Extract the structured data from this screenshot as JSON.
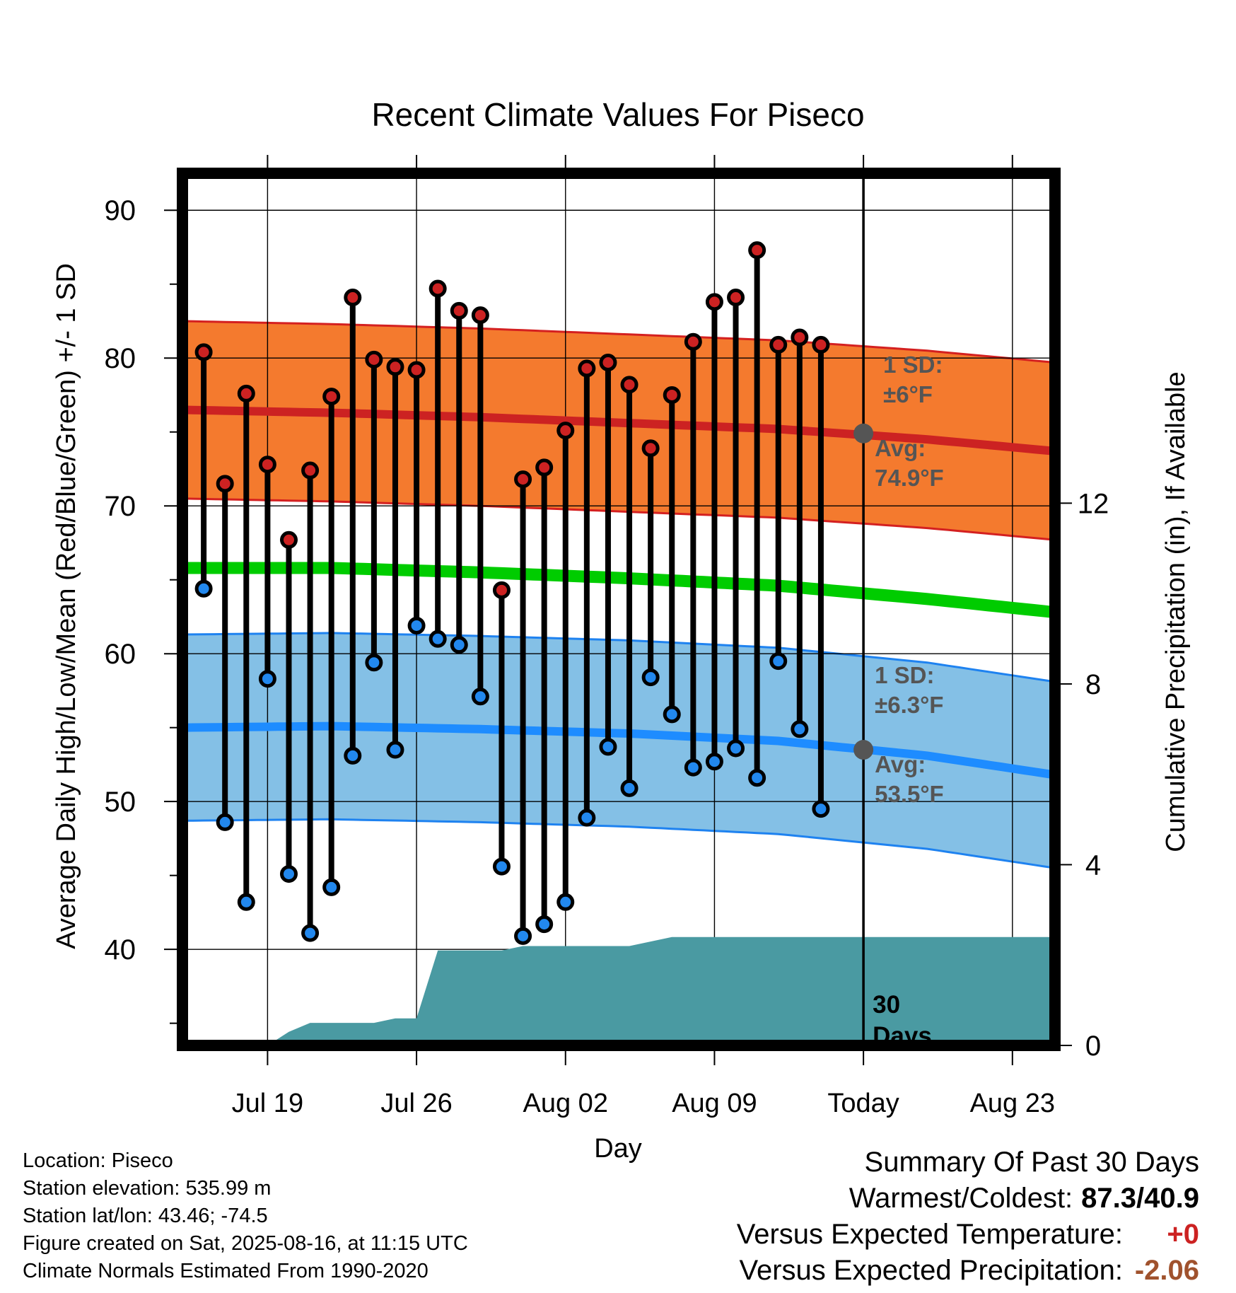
{
  "chart_data": {
    "type": "line",
    "title": "Recent Climate Values For Piseco",
    "xlabel": "Day",
    "ylabel": "Average Daily High/Low/Mean (Red/Blue/Green) +/- 1 SD",
    "y2label": "Cumulative Precipitation (in), If Available",
    "x_dates": [
      "2025-07-16",
      "2025-07-17",
      "2025-07-18",
      "2025-07-19",
      "2025-07-20",
      "2025-07-21",
      "2025-07-22",
      "2025-07-23",
      "2025-07-24",
      "2025-07-25",
      "2025-07-26",
      "2025-07-27",
      "2025-07-28",
      "2025-07-29",
      "2025-07-30",
      "2025-07-31",
      "2025-08-01",
      "2025-08-02",
      "2025-08-03",
      "2025-08-04",
      "2025-08-05",
      "2025-08-06",
      "2025-08-07",
      "2025-08-08",
      "2025-08-09",
      "2025-08-10",
      "2025-08-11",
      "2025-08-12",
      "2025-08-13",
      "2025-08-14",
      "2025-08-15"
    ],
    "xlim": [
      "2025-07-15",
      "2025-08-25"
    ],
    "ylim": [
      33.5,
      92.5
    ],
    "y2lim": [
      0,
      19.3
    ],
    "yticks": [
      40,
      50,
      60,
      70,
      80,
      90
    ],
    "y2ticks": [
      0,
      4,
      8,
      12
    ],
    "xticks": [
      {
        "date": "2025-07-19",
        "label": "Jul 19"
      },
      {
        "date": "2025-07-26",
        "label": "Jul 26"
      },
      {
        "date": "2025-08-02",
        "label": "Aug 02"
      },
      {
        "date": "2025-08-09",
        "label": "Aug 09"
      },
      {
        "date": "2025-08-16",
        "label": "Today"
      },
      {
        "date": "2025-08-23",
        "label": "Aug 23"
      }
    ],
    "grid": true,
    "series": [
      {
        "name": "High",
        "color": "#cc2222",
        "values": [
          80.4,
          71.5,
          77.6,
          72.8,
          67.7,
          72.4,
          77.4,
          84.1,
          79.9,
          79.4,
          79.2,
          84.7,
          83.2,
          82.9,
          64.3,
          71.8,
          72.6,
          75.1,
          79.3,
          79.7,
          78.2,
          73.9,
          77.5,
          81.1,
          83.8,
          84.1,
          87.3,
          80.9,
          81.4,
          80.9,
          null
        ]
      },
      {
        "name": "Low",
        "color": "#2288ee",
        "values": [
          64.4,
          48.6,
          43.2,
          58.3,
          45.1,
          41.1,
          44.2,
          53.1,
          59.4,
          53.5,
          61.9,
          61.0,
          60.6,
          57.1,
          45.6,
          40.9,
          41.7,
          43.2,
          48.9,
          53.7,
          50.9,
          58.4,
          55.9,
          52.3,
          52.7,
          53.6,
          51.6,
          59.5,
          54.9,
          49.5,
          null
        ]
      }
    ],
    "normals": {
      "dates": [
        "2025-07-15",
        "2025-07-22",
        "2025-07-29",
        "2025-08-05",
        "2025-08-12",
        "2025-08-19",
        "2025-08-25"
      ],
      "high_avg": [
        76.5,
        76.3,
        76.0,
        75.6,
        75.2,
        74.5,
        73.7
      ],
      "high_sd": 6,
      "low_avg": [
        55.0,
        55.1,
        54.9,
        54.6,
        54.1,
        53.1,
        51.8
      ],
      "low_sd": 6.3,
      "mean_avg": [
        65.8,
        65.8,
        65.5,
        65.1,
        64.6,
        63.7,
        62.8
      ]
    },
    "precip_cumulative": {
      "dates": [
        "2025-07-19",
        "2025-07-20",
        "2025-07-21",
        "2025-07-22",
        "2025-07-23",
        "2025-07-24",
        "2025-07-25",
        "2025-07-26",
        "2025-07-27",
        "2025-07-28",
        "2025-07-29",
        "2025-07-30",
        "2025-07-31",
        "2025-08-01",
        "2025-08-02",
        "2025-08-03",
        "2025-08-04",
        "2025-08-05",
        "2025-08-06",
        "2025-08-07",
        "2025-08-08",
        "2025-08-15",
        "2025-08-25"
      ],
      "values": [
        0.0,
        0.3,
        0.5,
        0.5,
        0.5,
        0.5,
        0.6,
        0.6,
        2.1,
        2.1,
        2.1,
        2.1,
        2.2,
        2.2,
        2.2,
        2.2,
        2.2,
        2.2,
        2.3,
        2.4,
        2.4,
        2.4,
        2.4
      ],
      "color": "#4a9aa2"
    },
    "annotations": {
      "high_sd_label": [
        "1 SD:",
        "±6°F"
      ],
      "high_avg_label": [
        "Avg:",
        "74.9°F"
      ],
      "low_sd_label": [
        "1 SD:",
        "±6.3°F"
      ],
      "low_avg_label": [
        "Avg:",
        "53.5°F"
      ],
      "today_high_avg": 74.9,
      "today_low_avg": 53.5,
      "days_label": [
        "30",
        "Days"
      ]
    }
  },
  "footer": {
    "location": "Location: Piseco",
    "elevation": "Station elevation: 535.99 m",
    "latlon": "Station lat/lon: 43.46; -74.5",
    "created": "Figure created on Sat, 2025-08-16, at 11:15 UTC",
    "normals": "Climate Normals Estimated From 1990-2020"
  },
  "summary": {
    "title": "Summary Of Past 30 Days",
    "warm_cold_label": "Warmest/Coldest:",
    "warm_cold_value": "87.3/40.9",
    "temp_label": "Versus Expected Temperature:",
    "temp_value": "+0",
    "temp_color": "#cc2222",
    "precip_label": "Versus Expected Precipitation:",
    "precip_value": "-2.06",
    "precip_color": "#a0522d"
  }
}
